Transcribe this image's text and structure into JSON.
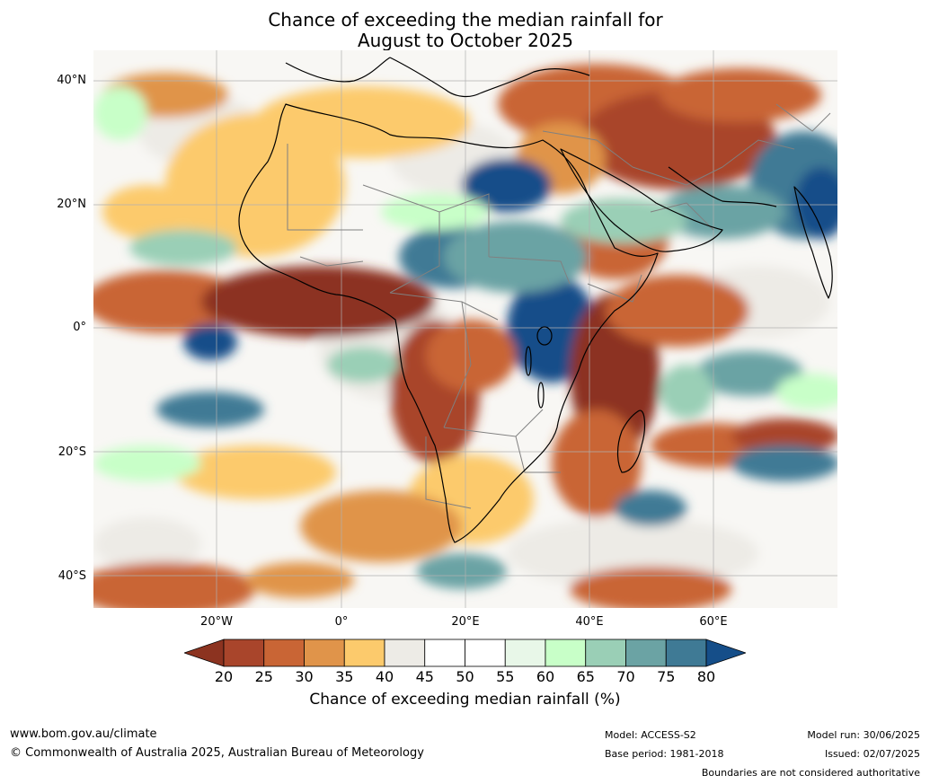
{
  "title": {
    "line1": "Chance of exceeding the median rainfall for",
    "line2": "August to October 2025"
  },
  "map": {
    "region": "Africa",
    "lat_labels": [
      "40°N",
      "20°N",
      "0°",
      "20°S",
      "40°S"
    ],
    "lon_labels": [
      "20°W",
      "0°",
      "20°E",
      "40°E",
      "60°E"
    ],
    "colors": {
      "ocean_base": "#f8f7f4",
      "coast": "#000000",
      "border": "#808080",
      "grid": "#b0b0b0"
    }
  },
  "colorbar": {
    "levels": [
      20,
      25,
      30,
      35,
      40,
      45,
      50,
      55,
      60,
      65,
      70,
      75,
      80
    ],
    "tick_labels": [
      "20",
      "25",
      "30",
      "35",
      "40",
      "45",
      "50",
      "55",
      "60",
      "65",
      "70",
      "75",
      "80"
    ],
    "under_color": "#8c3320",
    "over_color": "#154e89",
    "colors": [
      "#a9452b",
      "#c96535",
      "#e0944a",
      "#fcca6c",
      "#edebe6",
      "#ffffff",
      "#ffffff",
      "#e8f7e8",
      "#c8ffc8",
      "#9acfb6",
      "#6ba3a4",
      "#3f7a95"
    ],
    "label": "Chance of exceeding median rainfall (%)"
  },
  "footer": {
    "website": "www.bom.gov.au/climate",
    "copyright": "© Commonwealth of Australia 2025, Australian Bureau of Meteorology",
    "model": "Model: ACCESS-S2",
    "base_period": "Base period: 1981-2018",
    "model_run": "Model run: 30/06/2025",
    "issued": "Issued: 02/07/2025",
    "disclaimer": "Boundaries are not considered authoritative"
  }
}
